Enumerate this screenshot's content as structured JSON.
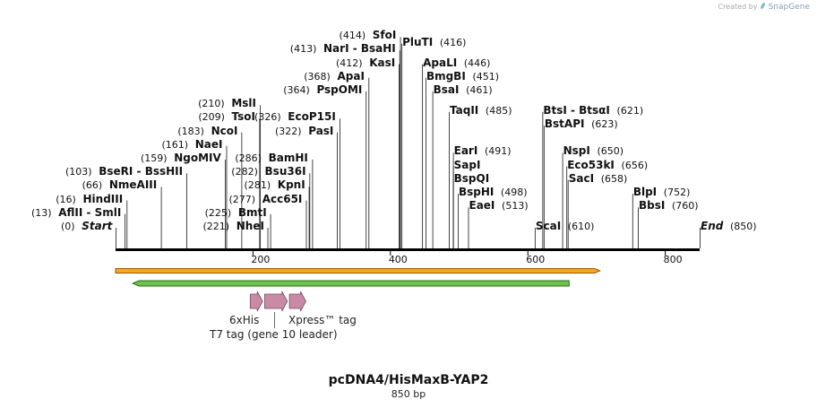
{
  "credit": {
    "prefix": "Created by",
    "brand": "SnapGene",
    "icon": "snapgene-leaf-icon"
  },
  "title": "pcDNA4/HisMaxB-YAP2",
  "subtitle": "850 bp",
  "sequence_length": 850,
  "ruler_ticks": [
    {
      "bp": 200,
      "label": "200"
    },
    {
      "bp": 400,
      "label": "400"
    },
    {
      "bp": 600,
      "label": "600"
    },
    {
      "bp": 800,
      "label": "800"
    }
  ],
  "sites": [
    {
      "name": "Start",
      "pos_label": "(0)",
      "bp": 0,
      "row": 0,
      "side": "left",
      "kind": "end"
    },
    {
      "name": "AflII  - SmlI",
      "pos_label": "(13)",
      "bp": 13,
      "row": 1,
      "side": "left"
    },
    {
      "name": "HindIII",
      "pos_label": "(16)",
      "bp": 16,
      "row": 2,
      "side": "left"
    },
    {
      "name": "NmeAIII",
      "pos_label": "(66)",
      "bp": 66,
      "row": 3,
      "side": "left"
    },
    {
      "name": "BseRI  - BssHII",
      "pos_label": "(103)",
      "bp": 103,
      "row": 4,
      "side": "left"
    },
    {
      "name": "NgoMIV",
      "pos_label": "(159)",
      "bp": 159,
      "row": 5,
      "side": "left"
    },
    {
      "name": "NaeI",
      "pos_label": "(161)",
      "bp": 161,
      "row": 6,
      "side": "left"
    },
    {
      "name": "NcoI",
      "pos_label": "(183)",
      "bp": 183,
      "row": 7,
      "side": "left"
    },
    {
      "name": "TsoI",
      "pos_label": "(209)",
      "bp": 209,
      "row": 8,
      "side": "left"
    },
    {
      "name": "MslI",
      "pos_label": "(210)",
      "bp": 210,
      "row": 9,
      "side": "left"
    },
    {
      "name": "NheI",
      "pos_label": "(221)",
      "bp": 221,
      "row": 0,
      "side": "left"
    },
    {
      "name": "BmtI",
      "pos_label": "(225)",
      "bp": 225,
      "row": 1,
      "side": "left"
    },
    {
      "name": "Acc65I",
      "pos_label": "(277)",
      "bp": 277,
      "row": 2,
      "side": "left"
    },
    {
      "name": "KpnI",
      "pos_label": "(281)",
      "bp": 281,
      "row": 3,
      "side": "left"
    },
    {
      "name": "Bsu36I",
      "pos_label": "(282)",
      "bp": 282,
      "row": 4,
      "side": "left"
    },
    {
      "name": "BamHI",
      "pos_label": "(286)",
      "bp": 286,
      "row": 5,
      "side": "left"
    },
    {
      "name": "PasI",
      "pos_label": "(322)",
      "bp": 322,
      "row": 7,
      "side": "left"
    },
    {
      "name": "EcoP15I",
      "pos_label": "(326)",
      "bp": 326,
      "row": 8,
      "side": "left"
    },
    {
      "name": "PspOMI",
      "pos_label": "(364)",
      "bp": 364,
      "row": 10,
      "side": "left"
    },
    {
      "name": "ApaI",
      "pos_label": "(368)",
      "bp": 368,
      "row": 11,
      "side": "left"
    },
    {
      "name": "KasI",
      "pos_label": "(412)",
      "bp": 412,
      "row": 12,
      "side": "left"
    },
    {
      "name": "NarI  - BsaHI",
      "pos_label": "(413)",
      "bp": 413,
      "row": 13,
      "side": "left"
    },
    {
      "name": "SfoI",
      "pos_label": "(414)",
      "bp": 414,
      "row": 14,
      "side": "left"
    },
    {
      "name": "PluTI",
      "pos_label": "(416)",
      "bp": 416,
      "row": 13.5,
      "side": "right"
    },
    {
      "name": "ApaLI",
      "pos_label": "(446)",
      "bp": 446,
      "row": 12,
      "side": "right"
    },
    {
      "name": "BmgBI",
      "pos_label": "(451)",
      "bp": 451,
      "row": 11,
      "side": "right"
    },
    {
      "name": "BsaI",
      "pos_label": "(461)",
      "bp": 461,
      "row": 10,
      "side": "right"
    },
    {
      "name": "TaqII",
      "pos_label": "(485)",
      "bp": 485,
      "row": 8.5,
      "side": "right"
    },
    {
      "name": "EarI",
      "pos_label": "(491)",
      "bp": 491,
      "row": 5.5,
      "side": "right"
    },
    {
      "name": "SapI",
      "pos_label": "",
      "bp": 491,
      "row": 4.5,
      "side": "right"
    },
    {
      "name": "BspQI",
      "pos_label": "",
      "bp": 491,
      "row": 3.5,
      "side": "right"
    },
    {
      "name": "BspHI",
      "pos_label": "(498)",
      "bp": 498,
      "row": 2.5,
      "side": "right"
    },
    {
      "name": "EaeI",
      "pos_label": "(513)",
      "bp": 513,
      "row": 1.5,
      "side": "right"
    },
    {
      "name": "ScaI",
      "pos_label": "(610)",
      "bp": 610,
      "row": 0,
      "side": "right"
    },
    {
      "name": "BtsI  - BtsαI",
      "pos_label": "(621)",
      "bp": 621,
      "row": 8.5,
      "side": "right"
    },
    {
      "name": "BstAPI",
      "pos_label": "(623)",
      "bp": 623,
      "row": 7.5,
      "side": "right"
    },
    {
      "name": "NspI",
      "pos_label": "(650)",
      "bp": 650,
      "row": 5.5,
      "side": "right"
    },
    {
      "name": "Eco53kI",
      "pos_label": "(656)",
      "bp": 656,
      "row": 4.5,
      "side": "right"
    },
    {
      "name": "SacI",
      "pos_label": "(658)",
      "bp": 658,
      "row": 3.5,
      "side": "right"
    },
    {
      "name": "BlpI",
      "pos_label": "(752)",
      "bp": 752,
      "row": 2.5,
      "side": "right"
    },
    {
      "name": "BbsI",
      "pos_label": "(760)",
      "bp": 760,
      "row": 1.5,
      "side": "right"
    },
    {
      "name": "End",
      "pos_label": "(850)",
      "bp": 850,
      "row": 0,
      "side": "right",
      "kind": "end"
    }
  ],
  "features": [
    {
      "id": "orf",
      "type": "orange-bar",
      "start_bp": 0,
      "end_bp": 705,
      "direction": "forward",
      "color": "#f5a623",
      "stroke": "#a05a00"
    },
    {
      "id": "yap2",
      "type": "green-bar",
      "start_bp": 25,
      "end_bp": 660,
      "direction": "reverse",
      "color": "#6cc24a",
      "stroke": "#2e6b19"
    },
    {
      "id": "6xHis",
      "type": "arrow",
      "start_bp": 196,
      "end_bp": 214,
      "direction": "forward",
      "color": "#c98aa5",
      "label": "6xHis"
    },
    {
      "id": "T7",
      "type": "arrow",
      "start_bp": 217,
      "end_bp": 250,
      "direction": "forward",
      "color": "#c98aa5",
      "label": "T7 tag (gene 10 leader)"
    },
    {
      "id": "Xpress",
      "type": "arrow",
      "start_bp": 253,
      "end_bp": 277,
      "direction": "forward",
      "color": "#c98aa5",
      "label": "Xpress™ tag"
    }
  ]
}
